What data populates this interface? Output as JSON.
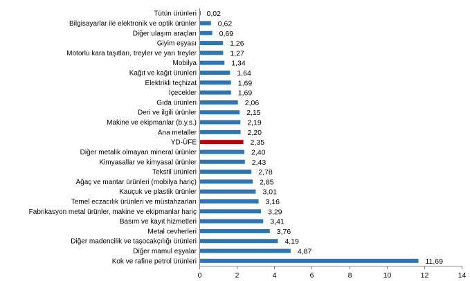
{
  "chart_data": {
    "type": "bar",
    "orientation": "horizontal",
    "title": "",
    "xlabel": "",
    "ylabel": "",
    "xlim": [
      0,
      14
    ],
    "xticks": [
      "0",
      "2",
      "4",
      "6",
      "8",
      "10",
      "12",
      "14"
    ],
    "grid": false,
    "legend": "none",
    "colors": {
      "default": "#2e75b6",
      "highlight": "#c00000"
    },
    "categories": [
      "Tütün ürünleri",
      "Bilgisayarlar ile elektronik ve optik ürünler",
      "Diğer ulaşım araçları",
      "Giyim eşyası",
      "Motorlu kara taşıtları, treyler ve yarı treyler",
      "Mobilya",
      "Kağıt ve kağıt ürünleri",
      "Elektrikli teçhizat",
      "İçecekler",
      "Gıda ürünleri",
      "Deri ve ilgili ürünler",
      "Makine ve ekipmanlar (b.y.s.)",
      "Ana metaller",
      "YD-ÜFE",
      "Diğer metalik olmayan mineral ürünler",
      "Kimyasallar ve kimyasal ürünler",
      "Tekstil ürünleri",
      "Ağaç ve mantar ürünleri (mobilya hariç)",
      "Kauçuk ve plastik ürünler",
      "Temel eczacılık ürünleri ve müstahzarları",
      "Fabrikasyon metal ürünler, makine ve ekipmanlar hariç",
      "Basım ve kayıt hizmetleri",
      "Metal cevherleri",
      "Diğer madencilik ve taşocakçılığı ürünleri",
      "Diğer mamul eşyalar",
      "Kok ve rafine petrol ürünleri"
    ],
    "values": [
      0.02,
      0.62,
      0.69,
      1.26,
      1.27,
      1.34,
      1.64,
      1.69,
      1.69,
      2.06,
      2.15,
      2.19,
      2.2,
      2.35,
      2.4,
      2.43,
      2.78,
      2.85,
      3.01,
      3.16,
      3.29,
      3.41,
      3.76,
      4.19,
      4.87,
      11.69
    ],
    "labels": [
      "0,02",
      "0,62",
      "0,69",
      "1,26",
      "1,27",
      "1,34",
      "1,64",
      "1,69",
      "1,69",
      "2,06",
      "2,15",
      "2,19",
      "2,20",
      "2,35",
      "2,40",
      "2,43",
      "2,78",
      "2,85",
      "3,01",
      "3,16",
      "3,29",
      "3,41",
      "3,76",
      "4,19",
      "4,87",
      "11,69"
    ],
    "highlight": [
      "YD-ÜFE"
    ]
  }
}
